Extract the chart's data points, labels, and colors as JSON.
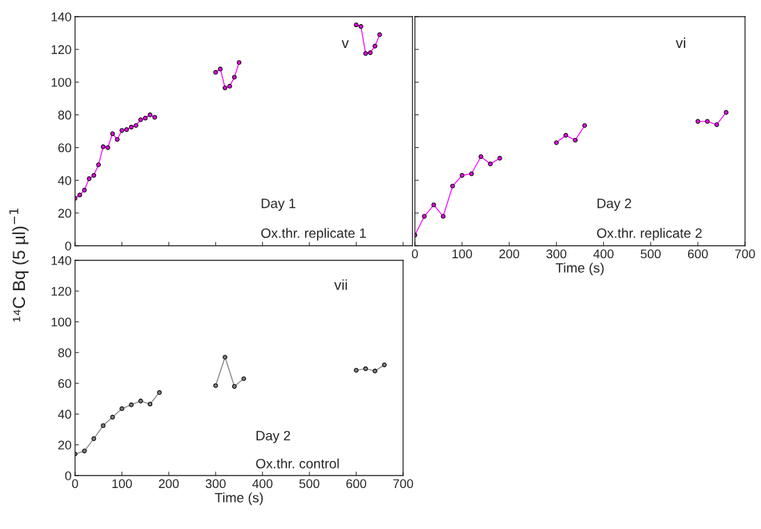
{
  "chart_data": [
    {
      "type": "line",
      "ylabel": "¹⁴C Bq (5 µl)$^{−1}$",
      "annotations": [
        "v",
        "Day 1",
        "Ox.thr. replicate 1"
      ],
      "xlim": [
        0,
        720
      ],
      "ylim": [
        0,
        140
      ],
      "xticks": [
        0,
        100,
        200,
        300,
        400,
        500,
        600,
        700
      ],
      "yticks": [
        0,
        20,
        40,
        60,
        80,
        100,
        120,
        140
      ],
      "tick_labels": "y",
      "grid": false,
      "marker": "circle",
      "line_style": "solid",
      "series": [
        {
          "color": "#ff00ff",
          "x": [
            0,
            10,
            20,
            30,
            40,
            50,
            60,
            70,
            80,
            90,
            100,
            110,
            120,
            130,
            140,
            150,
            160,
            170
          ],
          "values": [
            29,
            31,
            34,
            41,
            43,
            49.5,
            60.5,
            60,
            68.5,
            65,
            70.5,
            71,
            72.5,
            73.5,
            77,
            78,
            80,
            78.5
          ]
        },
        {
          "color": "#ff00ff",
          "x": [
            300,
            310,
            320,
            330,
            340,
            350
          ],
          "values": [
            106,
            108,
            96.5,
            97.5,
            103,
            112
          ]
        },
        {
          "color": "#ff00ff",
          "x": [
            600,
            610,
            620,
            630,
            640,
            650
          ],
          "values": [
            135,
            134,
            117.5,
            118,
            122,
            129
          ]
        }
      ]
    },
    {
      "type": "line",
      "xlabel": "Time (s)",
      "annotations": [
        "vi",
        "Day 2",
        "Ox.thr. replicate 2"
      ],
      "xlim": [
        0,
        700
      ],
      "ylim": [
        0,
        140
      ],
      "xticks": [
        0,
        100,
        200,
        300,
        400,
        500,
        600,
        700
      ],
      "yticks": [
        0,
        20,
        40,
        60,
        80,
        100,
        120,
        140
      ],
      "tick_labels": "x",
      "grid": false,
      "marker": "circle",
      "line_style": "solid",
      "series": [
        {
          "color": "#ff00ff",
          "x": [
            0,
            20,
            40,
            60,
            80,
            100,
            120,
            140,
            160,
            180
          ],
          "values": [
            6.5,
            18,
            25,
            18,
            36.5,
            43,
            44,
            54.5,
            50,
            53.5
          ]
        },
        {
          "color": "#ff00ff",
          "x": [
            300,
            320,
            340,
            360
          ],
          "values": [
            63,
            67.5,
            64.5,
            73.5
          ]
        },
        {
          "color": "#ff00ff",
          "x": [
            600,
            620,
            640,
            660
          ],
          "values": [
            76,
            76,
            74,
            81.5
          ]
        }
      ]
    },
    {
      "type": "line",
      "xlabel": "Time (s)",
      "annotations": [
        "vii",
        "Day 2",
        "Ox.thr. control"
      ],
      "xlim": [
        0,
        700
      ],
      "ylim": [
        0,
        140
      ],
      "xticks": [
        0,
        100,
        200,
        300,
        400,
        500,
        600,
        700
      ],
      "yticks": [
        0,
        20,
        40,
        60,
        80,
        100,
        120,
        140
      ],
      "grid": false,
      "marker": "circle",
      "line_style": "solid",
      "series": [
        {
          "color": "#808080",
          "x": [
            0,
            20,
            40,
            60,
            80,
            100,
            120,
            140,
            160,
            180
          ],
          "values": [
            14,
            16,
            24,
            32.5,
            38,
            43.5,
            46,
            48.5,
            46.5,
            54
          ]
        },
        {
          "color": "#808080",
          "x": [
            300,
            320,
            340,
            360
          ],
          "values": [
            58.5,
            77,
            58,
            63
          ]
        },
        {
          "color": "#808080",
          "x": [
            600,
            620,
            640,
            660
          ],
          "values": [
            68.5,
            69.5,
            68,
            72
          ]
        }
      ]
    }
  ]
}
